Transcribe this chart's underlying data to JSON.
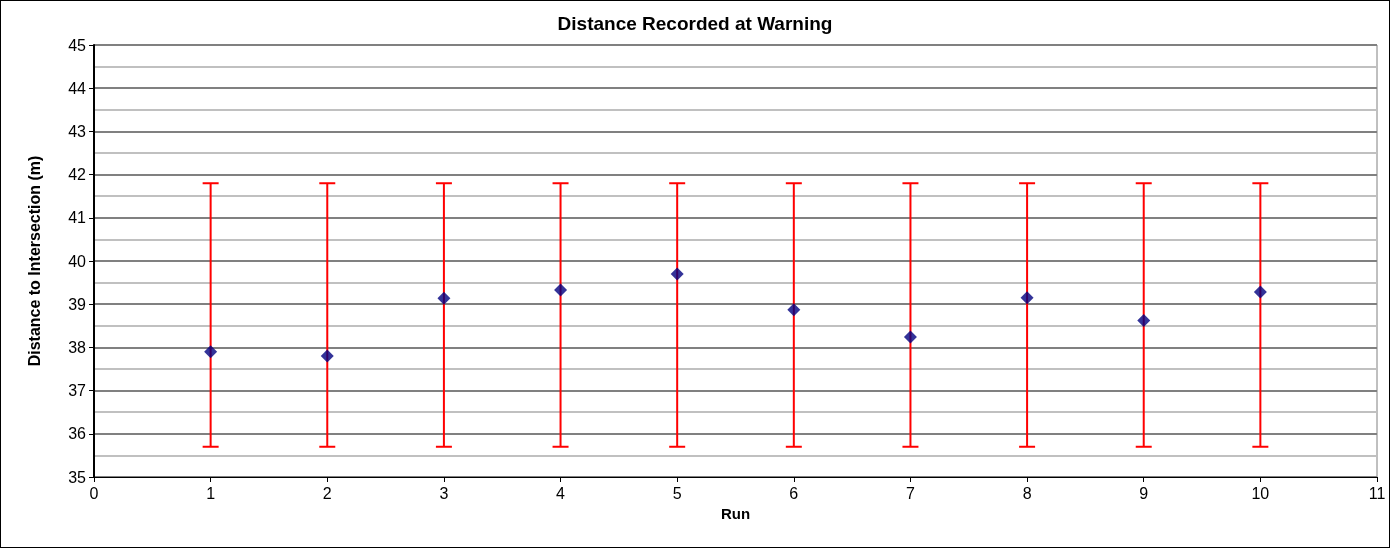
{
  "chart_data": {
    "type": "scatter",
    "title": "Distance Recorded at Warning",
    "xlabel": "Run",
    "ylabel": "Distance to Intersection (m)",
    "x": [
      1,
      2,
      3,
      4,
      5,
      6,
      7,
      8,
      9,
      10
    ],
    "series": [
      {
        "color": "#000080",
        "values": [
          37.9,
          37.8,
          39.14,
          39.33,
          39.7,
          38.87,
          38.24,
          39.15,
          38.62,
          39.28
        ],
        "errors": [
          [
            35.7,
            41.8
          ],
          [
            35.7,
            41.8
          ],
          [
            35.7,
            41.8
          ],
          [
            35.7,
            41.8
          ],
          [
            35.7,
            41.8
          ],
          [
            35.7,
            41.8
          ],
          [
            35.7,
            41.8
          ],
          [
            35.7,
            41.8
          ],
          [
            35.7,
            41.8
          ],
          [
            35.7,
            41.8
          ]
        ]
      }
    ],
    "xlim": [
      0,
      11
    ],
    "xticks": [
      0,
      1,
      2,
      3,
      4,
      5,
      6,
      7,
      8,
      9,
      10,
      11
    ],
    "ylim": [
      35,
      45
    ],
    "yticks": [
      35,
      36,
      37,
      38,
      39,
      40,
      41,
      42,
      43,
      44,
      45
    ],
    "grid": "y",
    "marker": "diamond"
  }
}
